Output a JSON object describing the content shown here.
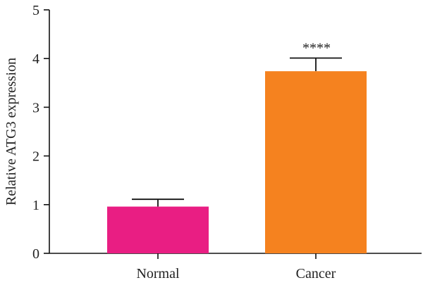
{
  "chart_data": {
    "type": "bar",
    "categories": [
      "Normal",
      "Cancer"
    ],
    "values": [
      0.96,
      3.74
    ],
    "errors": [
      0.15,
      0.27
    ],
    "colors": [
      "#e91e83",
      "#f5821f"
    ],
    "annotations": [
      "",
      "****"
    ],
    "xlabel": "",
    "ylabel": "Relative ATG3 expression",
    "ylim": [
      0,
      5
    ],
    "yticks": [
      "0",
      "1",
      "2",
      "3",
      "4",
      "5"
    ],
    "grid": false
  }
}
